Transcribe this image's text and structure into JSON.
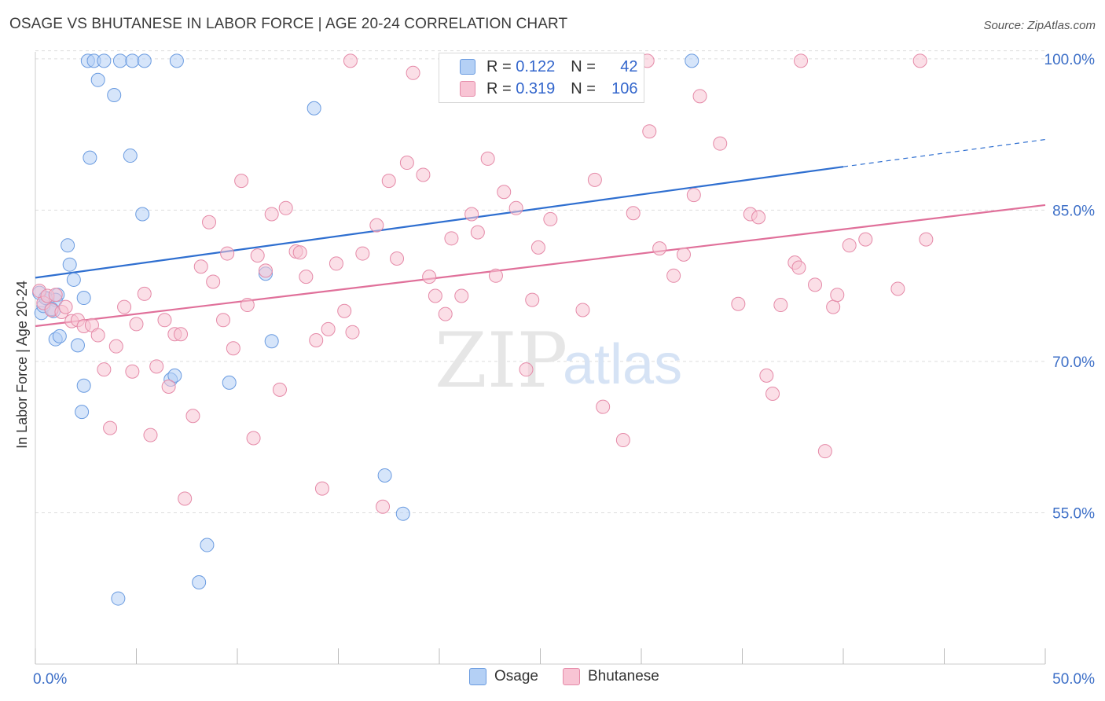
{
  "title": "OSAGE VS BHUTANESE IN LABOR FORCE | AGE 20-24 CORRELATION CHART",
  "source": "Source: ZipAtlas.com",
  "watermark": {
    "zip": "ZIP",
    "atlas": "atlas"
  },
  "legend": {
    "r_label": "R =",
    "n_label": "N =",
    "series": [
      {
        "name": "Osage",
        "r": "0.122",
        "n": "42",
        "fill": "#b4d0f5",
        "stroke": "#6a9be0"
      },
      {
        "name": "Bhutanese",
        "r": "0.319",
        "n": "106",
        "fill": "#f8c4d4",
        "stroke": "#e58aa8"
      }
    ]
  },
  "colors": {
    "osage_line": "#2f6fd0",
    "bhutanese_line": "#e0709a",
    "axis_text": "#3d6fc7",
    "grid": "#dddddd"
  },
  "chart_data": {
    "type": "scatter",
    "xlabel": "",
    "ylabel": "In Labor Force | Age 20-24",
    "xlim": [
      0,
      50
    ],
    "ylim": [
      40,
      101
    ],
    "x_tick_labels": [
      {
        "value": 0,
        "label": "0.0%"
      },
      {
        "value": 50,
        "label": "50.0%"
      }
    ],
    "y_tick_labels": [
      {
        "value": 55,
        "label": "55.0%"
      },
      {
        "value": 70,
        "label": "70.0%"
      },
      {
        "value": 85,
        "label": "85.0%"
      },
      {
        "value": 100,
        "label": "100.0%"
      }
    ],
    "legend_position": "top-center",
    "series": [
      {
        "name": "Osage",
        "trend": {
          "x0": 0,
          "y0": 78.3,
          "x1": 40,
          "y1": 89.3,
          "dashed_to_x": 50,
          "dashed_to_y": 92.0
        },
        "points": [
          [
            0.3,
            74.8
          ],
          [
            0.6,
            76.2
          ],
          [
            0.9,
            75.0
          ],
          [
            1.0,
            72.2
          ],
          [
            1.1,
            76.6
          ],
          [
            1.2,
            72.5
          ],
          [
            1.6,
            81.5
          ],
          [
            1.7,
            79.6
          ],
          [
            1.9,
            78.1
          ],
          [
            2.1,
            71.6
          ],
          [
            2.3,
            65.0
          ],
          [
            2.4,
            67.6
          ],
          [
            2.4,
            76.3
          ],
          [
            2.7,
            90.2
          ],
          [
            2.6,
            99.8
          ],
          [
            2.9,
            99.8
          ],
          [
            3.1,
            97.9
          ],
          [
            3.4,
            99.8
          ],
          [
            3.9,
            96.4
          ],
          [
            4.2,
            99.8
          ],
          [
            4.7,
            90.4
          ],
          [
            4.8,
            99.8
          ],
          [
            5.3,
            84.6
          ],
          [
            5.4,
            99.8
          ],
          [
            6.7,
            68.2
          ],
          [
            6.9,
            68.6
          ],
          [
            7.0,
            99.8
          ],
          [
            8.1,
            48.1
          ],
          [
            8.5,
            51.8
          ],
          [
            9.6,
            67.9
          ],
          [
            11.4,
            78.7
          ],
          [
            11.7,
            72.0
          ],
          [
            13.8,
            95.1
          ],
          [
            17.3,
            58.7
          ],
          [
            18.2,
            54.9
          ],
          [
            4.1,
            46.5
          ],
          [
            32.5,
            99.8
          ],
          [
            0.2,
            76.8
          ],
          [
            0.4,
            75.5
          ],
          [
            1.0,
            76.1
          ],
          [
            0.8,
            75.2
          ],
          [
            0.5,
            76.3
          ]
        ]
      },
      {
        "name": "Bhutanese",
        "trend": {
          "x0": 0,
          "y0": 73.5,
          "x1": 50,
          "y1": 85.5
        },
        "points": [
          [
            0.2,
            77.0
          ],
          [
            0.4,
            75.8
          ],
          [
            0.6,
            76.5
          ],
          [
            0.8,
            75.1
          ],
          [
            1.0,
            76.6
          ],
          [
            1.3,
            74.9
          ],
          [
            1.5,
            75.4
          ],
          [
            1.8,
            74.0
          ],
          [
            2.1,
            74.1
          ],
          [
            2.4,
            73.5
          ],
          [
            2.8,
            73.6
          ],
          [
            3.1,
            72.6
          ],
          [
            3.4,
            69.2
          ],
          [
            3.7,
            63.4
          ],
          [
            4.0,
            71.5
          ],
          [
            4.4,
            75.4
          ],
          [
            4.8,
            69.0
          ],
          [
            5.0,
            73.7
          ],
          [
            5.4,
            76.7
          ],
          [
            5.7,
            62.7
          ],
          [
            6.0,
            69.5
          ],
          [
            6.4,
            74.1
          ],
          [
            6.6,
            67.5
          ],
          [
            6.9,
            72.7
          ],
          [
            7.2,
            72.7
          ],
          [
            7.4,
            56.4
          ],
          [
            7.8,
            64.6
          ],
          [
            8.2,
            79.4
          ],
          [
            8.6,
            83.8
          ],
          [
            8.8,
            77.9
          ],
          [
            9.3,
            74.1
          ],
          [
            9.5,
            80.7
          ],
          [
            9.8,
            71.3
          ],
          [
            10.2,
            87.9
          ],
          [
            10.5,
            75.6
          ],
          [
            10.8,
            62.4
          ],
          [
            11.0,
            80.5
          ],
          [
            11.4,
            79.0
          ],
          [
            11.7,
            84.6
          ],
          [
            12.1,
            67.2
          ],
          [
            12.4,
            85.2
          ],
          [
            12.9,
            80.9
          ],
          [
            13.1,
            80.8
          ],
          [
            13.4,
            78.4
          ],
          [
            13.9,
            72.1
          ],
          [
            14.2,
            57.4
          ],
          [
            14.5,
            73.2
          ],
          [
            14.9,
            79.7
          ],
          [
            15.3,
            75.0
          ],
          [
            15.7,
            72.9
          ],
          [
            15.6,
            99.8
          ],
          [
            16.2,
            80.7
          ],
          [
            16.9,
            83.5
          ],
          [
            17.2,
            55.6
          ],
          [
            17.5,
            87.9
          ],
          [
            17.9,
            80.2
          ],
          [
            18.4,
            89.7
          ],
          [
            18.7,
            98.6
          ],
          [
            19.2,
            88.5
          ],
          [
            19.5,
            78.4
          ],
          [
            19.8,
            76.5
          ],
          [
            20.3,
            74.7
          ],
          [
            20.6,
            82.2
          ],
          [
            21.1,
            76.5
          ],
          [
            21.6,
            84.6
          ],
          [
            21.9,
            82.8
          ],
          [
            22.4,
            90.1
          ],
          [
            22.8,
            78.5
          ],
          [
            23.2,
            86.8
          ],
          [
            23.8,
            85.2
          ],
          [
            24.3,
            69.2
          ],
          [
            24.6,
            76.1
          ],
          [
            24.9,
            81.3
          ],
          [
            25.5,
            84.1
          ],
          [
            27.1,
            75.1
          ],
          [
            27.7,
            88.0
          ],
          [
            28.1,
            65.5
          ],
          [
            29.1,
            62.2
          ],
          [
            29.6,
            84.7
          ],
          [
            30.4,
            92.8
          ],
          [
            30.9,
            81.2
          ],
          [
            31.6,
            78.5
          ],
          [
            32.1,
            80.6
          ],
          [
            32.9,
            96.3
          ],
          [
            33.9,
            91.6
          ],
          [
            32.6,
            86.5
          ],
          [
            34.8,
            75.7
          ],
          [
            35.4,
            84.6
          ],
          [
            35.8,
            84.3
          ],
          [
            36.2,
            68.6
          ],
          [
            36.5,
            66.8
          ],
          [
            36.9,
            75.6
          ],
          [
            37.6,
            79.8
          ],
          [
            37.8,
            79.3
          ],
          [
            38.6,
            77.6
          ],
          [
            39.1,
            61.1
          ],
          [
            39.5,
            75.4
          ],
          [
            39.7,
            76.6
          ],
          [
            40.3,
            81.5
          ],
          [
            41.1,
            82.1
          ],
          [
            42.7,
            77.2
          ],
          [
            44.1,
            82.1
          ],
          [
            37.9,
            99.8
          ],
          [
            43.8,
            99.8
          ],
          [
            21.5,
            99.8
          ],
          [
            30.3,
            99.8
          ]
        ]
      }
    ]
  }
}
